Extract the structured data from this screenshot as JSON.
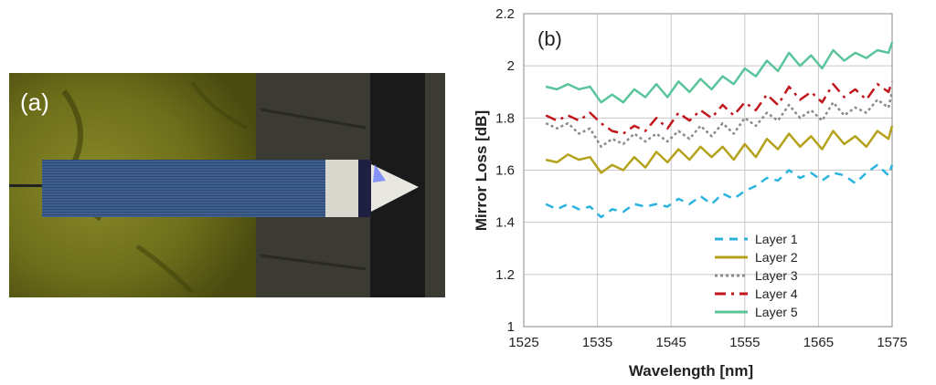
{
  "panel_a": {
    "label": "(a)"
  },
  "chart_data": {
    "type": "line",
    "label": "(b)",
    "xlabel": "Wavelength [nm]",
    "ylabel": "Mirror Loss [dB]",
    "xlim": [
      1525,
      1575
    ],
    "ylim": [
      1,
      2.2
    ],
    "xticks": [
      1525,
      1535,
      1545,
      1555,
      1565,
      1575
    ],
    "yticks": [
      1,
      1.2,
      1.4,
      1.6,
      1.8,
      2,
      2.2
    ],
    "ytick_labels": [
      "1",
      "1.2",
      "1.4",
      "1.6",
      "1.8",
      "2",
      "2.2"
    ],
    "xtick_labels": [
      "1525",
      "1535",
      "1545",
      "1555",
      "1565",
      "1575"
    ],
    "grid": true,
    "legend_position": "bottom-right",
    "series": [
      {
        "name": "Layer  1",
        "color": "#2bb3e0",
        "dash": "dash",
        "x": [
          1528,
          1529.5,
          1531,
          1532.5,
          1534,
          1535.5,
          1537,
          1538.5,
          1540,
          1541.5,
          1543,
          1544.5,
          1546,
          1547.5,
          1549,
          1550.5,
          1552,
          1553.5,
          1555,
          1556.5,
          1558,
          1559.5,
          1561,
          1562.5,
          1564,
          1565.5,
          1567,
          1568.5,
          1570,
          1571.5,
          1573,
          1574.5,
          1575
        ],
        "y": [
          1.47,
          1.45,
          1.47,
          1.45,
          1.46,
          1.42,
          1.45,
          1.44,
          1.47,
          1.46,
          1.47,
          1.46,
          1.49,
          1.47,
          1.5,
          1.47,
          1.51,
          1.49,
          1.52,
          1.54,
          1.57,
          1.56,
          1.6,
          1.57,
          1.59,
          1.56,
          1.59,
          1.58,
          1.55,
          1.59,
          1.62,
          1.58,
          1.62
        ]
      },
      {
        "name": "Layer  2",
        "color": "#b5a21c",
        "dash": "solid",
        "x": [
          1528,
          1529.5,
          1531,
          1532.5,
          1534,
          1535.5,
          1537,
          1538.5,
          1540,
          1541.5,
          1543,
          1544.5,
          1546,
          1547.5,
          1549,
          1550.5,
          1552,
          1553.5,
          1555,
          1556.5,
          1558,
          1559.5,
          1561,
          1562.5,
          1564,
          1565.5,
          1567,
          1568.5,
          1570,
          1571.5,
          1573,
          1574.5,
          1575
        ],
        "y": [
          1.64,
          1.63,
          1.66,
          1.64,
          1.65,
          1.59,
          1.62,
          1.6,
          1.65,
          1.61,
          1.67,
          1.63,
          1.68,
          1.64,
          1.69,
          1.65,
          1.69,
          1.64,
          1.7,
          1.65,
          1.72,
          1.68,
          1.74,
          1.69,
          1.73,
          1.68,
          1.75,
          1.7,
          1.73,
          1.69,
          1.75,
          1.72,
          1.77
        ]
      },
      {
        "name": "Layer  3",
        "color": "#8a8a8a",
        "dash": "dotted-double",
        "x": [
          1528,
          1529.5,
          1531,
          1532.5,
          1534,
          1535.5,
          1537,
          1538.5,
          1540,
          1541.5,
          1543,
          1544.5,
          1546,
          1547.5,
          1549,
          1550.5,
          1552,
          1553.5,
          1555,
          1556.5,
          1558,
          1559.5,
          1561,
          1562.5,
          1564,
          1565.5,
          1567,
          1568.5,
          1570,
          1571.5,
          1573,
          1574.5,
          1575
        ],
        "y": [
          1.78,
          1.76,
          1.78,
          1.74,
          1.76,
          1.69,
          1.72,
          1.7,
          1.74,
          1.71,
          1.74,
          1.71,
          1.75,
          1.72,
          1.77,
          1.73,
          1.78,
          1.74,
          1.8,
          1.77,
          1.82,
          1.79,
          1.85,
          1.8,
          1.83,
          1.79,
          1.86,
          1.81,
          1.84,
          1.82,
          1.87,
          1.84,
          1.9
        ]
      },
      {
        "name": "Layer  4",
        "color": "#c0161c",
        "dash": "dashdot",
        "x": [
          1528,
          1529.5,
          1531,
          1532.5,
          1534,
          1535.5,
          1537,
          1538.5,
          1540,
          1541.5,
          1543,
          1544.5,
          1546,
          1547.5,
          1549,
          1550.5,
          1552,
          1553.5,
          1555,
          1556.5,
          1558,
          1559.5,
          1561,
          1562.5,
          1564,
          1565.5,
          1567,
          1568.5,
          1570,
          1571.5,
          1573,
          1574.5,
          1575
        ],
        "y": [
          1.81,
          1.79,
          1.81,
          1.79,
          1.82,
          1.78,
          1.75,
          1.74,
          1.77,
          1.75,
          1.8,
          1.76,
          1.82,
          1.79,
          1.83,
          1.8,
          1.85,
          1.81,
          1.86,
          1.83,
          1.89,
          1.85,
          1.92,
          1.87,
          1.9,
          1.86,
          1.93,
          1.88,
          1.91,
          1.87,
          1.93,
          1.9,
          1.94
        ]
      },
      {
        "name": "Layer  5",
        "color": "#5ac49a",
        "dash": "solid",
        "x": [
          1528,
          1529.5,
          1531,
          1532.5,
          1534,
          1535.5,
          1537,
          1538.5,
          1540,
          1541.5,
          1543,
          1544.5,
          1546,
          1547.5,
          1549,
          1550.5,
          1552,
          1553.5,
          1555,
          1556.5,
          1558,
          1559.5,
          1561,
          1562.5,
          1564,
          1565.5,
          1567,
          1568.5,
          1570,
          1571.5,
          1573,
          1574.5,
          1575
        ],
        "y": [
          1.92,
          1.91,
          1.93,
          1.91,
          1.92,
          1.86,
          1.89,
          1.86,
          1.91,
          1.88,
          1.93,
          1.88,
          1.94,
          1.9,
          1.95,
          1.91,
          1.96,
          1.93,
          1.99,
          1.96,
          2.02,
          1.98,
          2.05,
          2.0,
          2.04,
          1.99,
          2.06,
          2.02,
          2.05,
          2.03,
          2.06,
          2.05,
          2.09
        ]
      }
    ]
  }
}
